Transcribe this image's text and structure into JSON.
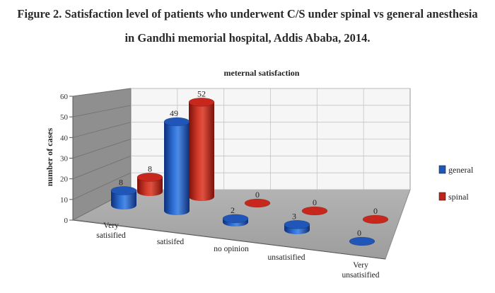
{
  "figure": {
    "caption_line1": "Figure 2. Satisfaction level of patients who underwent C/S under spinal vs general anesthesia",
    "caption_line2": "in Gandhi memorial hospital, Addis Ababa, 2014."
  },
  "chart_data": {
    "type": "bar",
    "style": "3d-cylinder",
    "title": "meternal satisfaction",
    "xlabel": "",
    "ylabel": "number of cases",
    "ylim": [
      0,
      60
    ],
    "yticks": [
      0,
      10,
      20,
      30,
      40,
      50,
      60
    ],
    "grid": true,
    "legend_position": "right",
    "categories": [
      [
        "Very",
        "satisified"
      ],
      [
        "satisifed"
      ],
      [
        "no opinion"
      ],
      [
        "unsatisified"
      ],
      [
        "Very",
        "unsatisified"
      ]
    ],
    "series": [
      {
        "name": "general",
        "color": "#1f56b8",
        "values": [
          8,
          49,
          2,
          3,
          0
        ]
      },
      {
        "name": "spinal",
        "color": "#c0231a",
        "values": [
          8,
          52,
          0,
          0,
          0
        ]
      }
    ]
  }
}
